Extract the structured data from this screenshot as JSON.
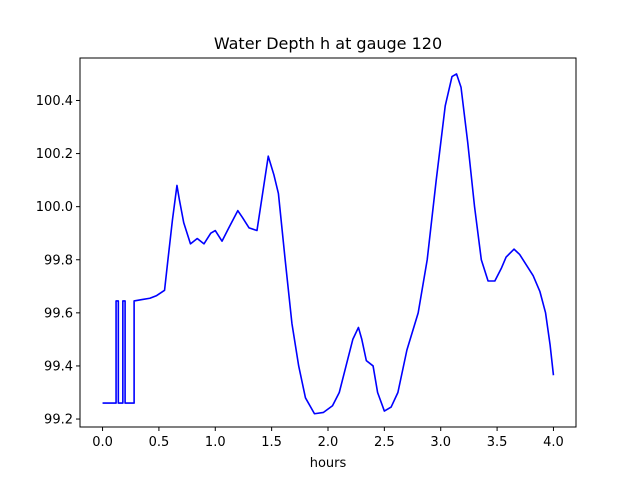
{
  "chart_data": {
    "type": "line",
    "title": "Water Depth h at gauge 120",
    "xlabel": "hours",
    "ylabel": "",
    "xlim": [
      -0.2,
      4.2
    ],
    "ylim": [
      99.17,
      100.56
    ],
    "xticks": [
      0.0,
      0.5,
      1.0,
      1.5,
      2.0,
      2.5,
      3.0,
      3.5,
      4.0
    ],
    "xtick_labels": [
      "0.0",
      "0.5",
      "1.0",
      "1.5",
      "2.0",
      "2.5",
      "3.0",
      "3.5",
      "4.0"
    ],
    "yticks": [
      99.2,
      99.4,
      99.6,
      99.8,
      100.0,
      100.2,
      100.4
    ],
    "ytick_labels": [
      "99.2",
      "99.4",
      "99.6",
      "99.8",
      "100.0",
      "100.2",
      "100.4"
    ],
    "grid": false,
    "series": [
      {
        "color": "#0000ff",
        "x": [
          0.0,
          0.12,
          0.12,
          0.14,
          0.14,
          0.18,
          0.18,
          0.2,
          0.2,
          0.28,
          0.28,
          0.35,
          0.42,
          0.48,
          0.55,
          0.58,
          0.62,
          0.66,
          0.68,
          0.72,
          0.78,
          0.84,
          0.9,
          0.96,
          1.0,
          1.06,
          1.12,
          1.2,
          1.24,
          1.3,
          1.37,
          1.42,
          1.47,
          1.52,
          1.56,
          1.62,
          1.68,
          1.74,
          1.8,
          1.88,
          1.96,
          2.04,
          2.1,
          2.16,
          2.22,
          2.27,
          2.3,
          2.34,
          2.4,
          2.44,
          2.5,
          2.56,
          2.62,
          2.7,
          2.8,
          2.88,
          2.96,
          3.04,
          3.1,
          3.14,
          3.18,
          3.24,
          3.3,
          3.36,
          3.42,
          3.48,
          3.54,
          3.58,
          3.65,
          3.7,
          3.76,
          3.82,
          3.88,
          3.93,
          3.97,
          4.0
        ],
        "y": [
          99.26,
          99.26,
          99.645,
          99.645,
          99.26,
          99.26,
          99.645,
          99.645,
          99.26,
          99.26,
          99.645,
          99.65,
          99.655,
          99.665,
          99.685,
          99.8,
          99.95,
          100.08,
          100.03,
          99.94,
          99.86,
          99.88,
          99.86,
          99.9,
          99.91,
          99.87,
          99.92,
          99.985,
          99.96,
          99.92,
          99.91,
          100.05,
          100.19,
          100.12,
          100.05,
          99.8,
          99.56,
          99.4,
          99.28,
          99.22,
          99.225,
          99.25,
          99.3,
          99.4,
          99.5,
          99.545,
          99.5,
          99.42,
          99.4,
          99.3,
          99.23,
          99.245,
          99.3,
          99.46,
          99.6,
          99.8,
          100.1,
          100.38,
          100.49,
          100.5,
          100.45,
          100.24,
          100.0,
          99.8,
          99.72,
          99.72,
          99.77,
          99.81,
          99.84,
          99.82,
          99.78,
          99.74,
          99.68,
          99.6,
          99.48,
          99.365
        ]
      }
    ]
  }
}
